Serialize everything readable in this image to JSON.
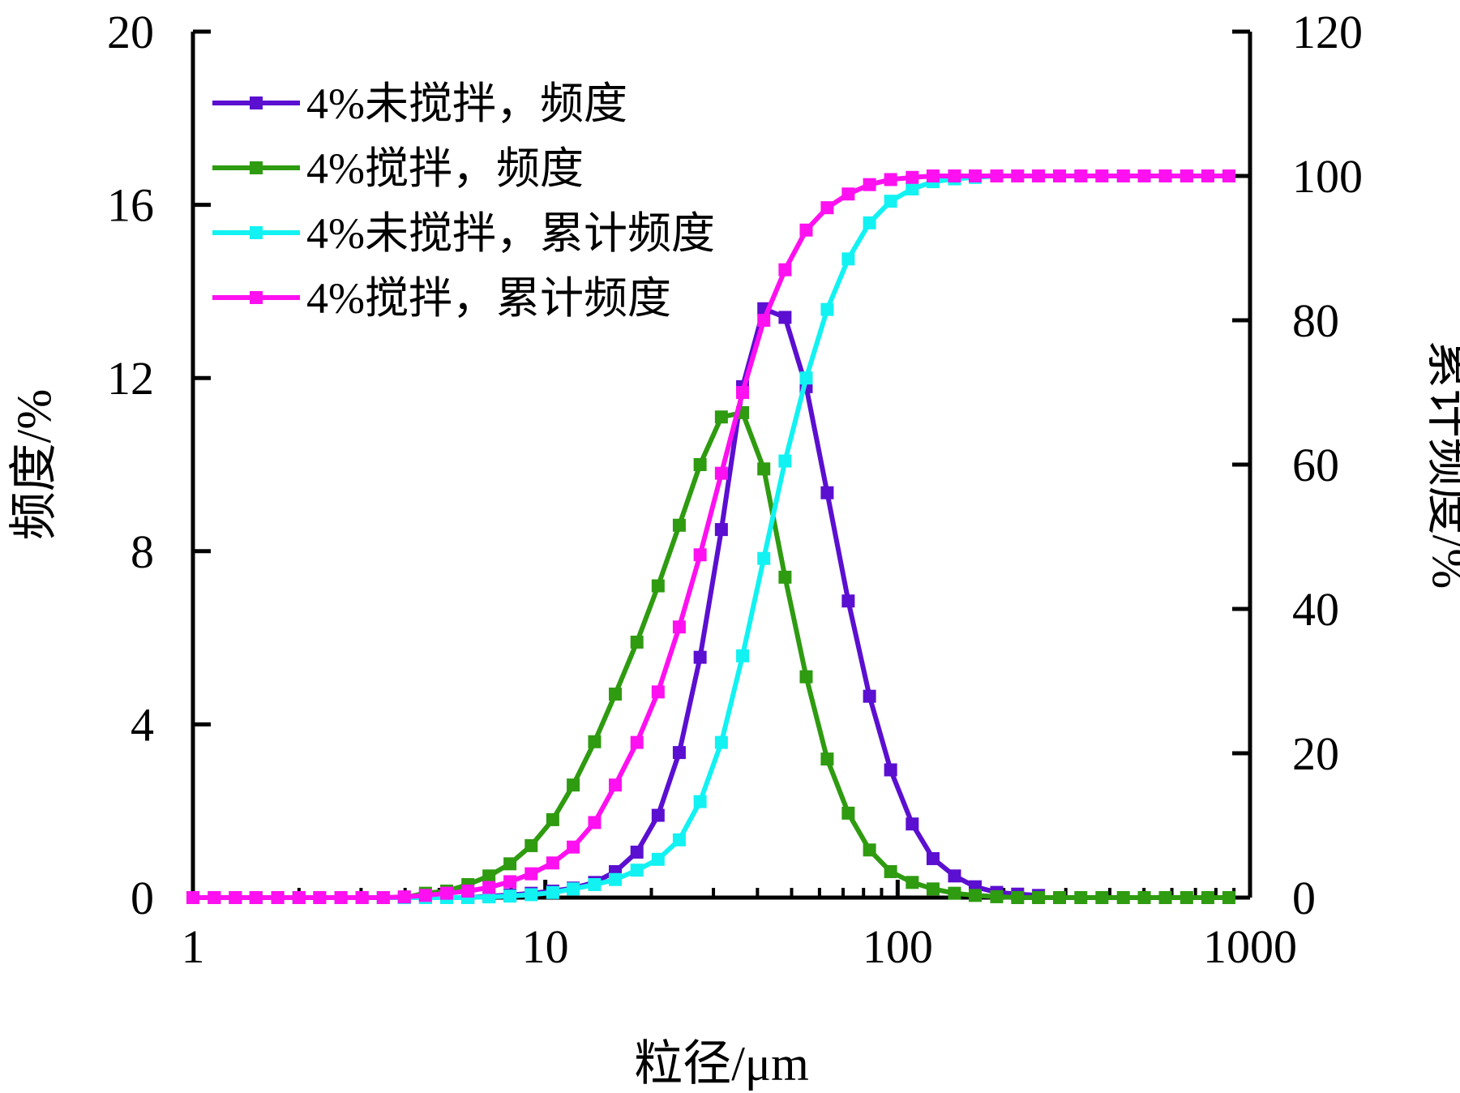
{
  "chart_data": {
    "type": "line",
    "xlabel": "粒径/μm",
    "ylabel_left": "频度/%",
    "ylabel_right": "累计频度/%",
    "x_scale": "log",
    "xlim": [
      1,
      1000
    ],
    "ylim_left": [
      0,
      20
    ],
    "ylim_right": [
      0,
      120
    ],
    "x_ticks": [
      "1",
      "10",
      "100",
      "1000"
    ],
    "y_ticks_left": [
      "0",
      "4",
      "8",
      "12",
      "16",
      "20"
    ],
    "y_ticks_right": [
      "0",
      "20",
      "40",
      "60",
      "80",
      "100",
      "120"
    ],
    "grid": false,
    "legend_position": "top-left",
    "series": [
      {
        "name": "4%未搅拌，频度",
        "axis": "left",
        "color": "#5B0FD0",
        "x": [
          1,
          1.15,
          1.32,
          1.51,
          1.74,
          2,
          2.29,
          2.63,
          3.02,
          3.47,
          3.98,
          4.57,
          5.25,
          6.03,
          6.92,
          7.94,
          9.12,
          10.5,
          12,
          13.8,
          15.8,
          18.2,
          20.9,
          24,
          27.5,
          31.6,
          36.3,
          41.7,
          47.9,
          55,
          63.1,
          72.4,
          83.2,
          95.5,
          110,
          126,
          145,
          166,
          191,
          219,
          251
        ],
        "y": [
          0,
          0,
          0,
          0,
          0,
          0,
          0,
          0,
          0,
          0,
          0,
          0,
          0,
          0,
          0.03,
          0.06,
          0.1,
          0.15,
          0.22,
          0.35,
          0.6,
          1.05,
          1.9,
          3.35,
          5.55,
          8.5,
          11.8,
          13.6,
          13.4,
          11.8,
          9.35,
          6.85,
          4.65,
          2.95,
          1.7,
          0.9,
          0.5,
          0.25,
          0.12,
          0.08,
          0.05
        ]
      },
      {
        "name": "4%搅拌，频度",
        "axis": "left",
        "color": "#2E9B10",
        "x": [
          1,
          1.15,
          1.32,
          1.51,
          1.74,
          2,
          2.29,
          2.63,
          3.02,
          3.47,
          3.98,
          4.57,
          5.25,
          6.03,
          6.92,
          7.94,
          9.12,
          10.5,
          12,
          13.8,
          15.8,
          18.2,
          20.9,
          24,
          27.5,
          31.6,
          36.3,
          41.7,
          47.9,
          55,
          63.1,
          72.4,
          83.2,
          95.5,
          110,
          126,
          145,
          166,
          191,
          219,
          251,
          288,
          331,
          380,
          437,
          501,
          575,
          661,
          759,
          871
        ],
        "y": [
          0,
          0,
          0,
          0,
          0,
          0,
          0,
          0,
          0,
          0,
          0,
          0.1,
          0.15,
          0.3,
          0.5,
          0.78,
          1.2,
          1.8,
          2.6,
          3.6,
          4.7,
          5.9,
          7.2,
          8.6,
          10.0,
          11.1,
          11.2,
          9.9,
          7.4,
          5.1,
          3.2,
          1.95,
          1.1,
          0.6,
          0.35,
          0.2,
          0.1,
          0.05,
          0.02,
          0,
          0,
          0,
          0,
          0,
          0,
          0,
          0,
          0,
          0,
          0
        ]
      },
      {
        "name": "4%未搅拌，累计频度",
        "axis": "right",
        "color": "#12F2F2",
        "x": [
          1,
          1.15,
          1.32,
          1.51,
          1.74,
          2,
          2.29,
          2.63,
          3.02,
          3.47,
          3.98,
          4.57,
          5.25,
          6.03,
          6.92,
          7.94,
          9.12,
          10.5,
          12,
          13.8,
          15.8,
          18.2,
          20.9,
          24,
          27.5,
          31.6,
          36.3,
          41.7,
          47.9,
          55,
          63.1,
          72.4,
          83.2,
          95.5,
          110,
          126,
          145,
          166,
          191,
          219,
          251,
          288,
          331,
          380,
          437,
          501,
          575,
          661,
          759,
          871
        ],
        "y": [
          0,
          0,
          0,
          0,
          0,
          0,
          0,
          0,
          0,
          0,
          0,
          0,
          0,
          0,
          0.1,
          0.2,
          0.4,
          0.7,
          1.2,
          1.8,
          2.5,
          3.8,
          5.3,
          8.0,
          13.3,
          21.5,
          33.5,
          47.0,
          60.5,
          72.0,
          81.5,
          88.5,
          93.5,
          96.5,
          98.2,
          99.2,
          99.6,
          99.8,
          100,
          100,
          100,
          100,
          100,
          100,
          100,
          100,
          100,
          100,
          100,
          100
        ]
      },
      {
        "name": "4%搅拌，累计频度",
        "axis": "right",
        "color": "#FF10F0",
        "x": [
          1,
          1.15,
          1.32,
          1.51,
          1.74,
          2,
          2.29,
          2.63,
          3.02,
          3.47,
          3.98,
          4.57,
          5.25,
          6.03,
          6.92,
          7.94,
          9.12,
          10.5,
          12,
          13.8,
          15.8,
          18.2,
          20.9,
          24,
          27.5,
          31.6,
          36.3,
          41.7,
          47.9,
          55,
          63.1,
          72.4,
          83.2,
          95.5,
          110,
          126,
          145,
          166,
          191,
          219,
          251,
          288,
          331,
          380,
          437,
          501,
          575,
          661,
          759,
          871
        ],
        "y": [
          0,
          0,
          0,
          0,
          0,
          0,
          0,
          0,
          0,
          0,
          0.1,
          0.3,
          0.6,
          0.9,
          1.4,
          2.2,
          3.3,
          4.8,
          7.0,
          10.4,
          15.6,
          21.5,
          28.5,
          37.5,
          47.5,
          58.8,
          70.0,
          80.0,
          87.0,
          92.5,
          95.6,
          97.5,
          98.8,
          99.5,
          99.8,
          100,
          100,
          100,
          100,
          100,
          100,
          100,
          100,
          100,
          100,
          100,
          100,
          100,
          100,
          100
        ]
      }
    ]
  }
}
